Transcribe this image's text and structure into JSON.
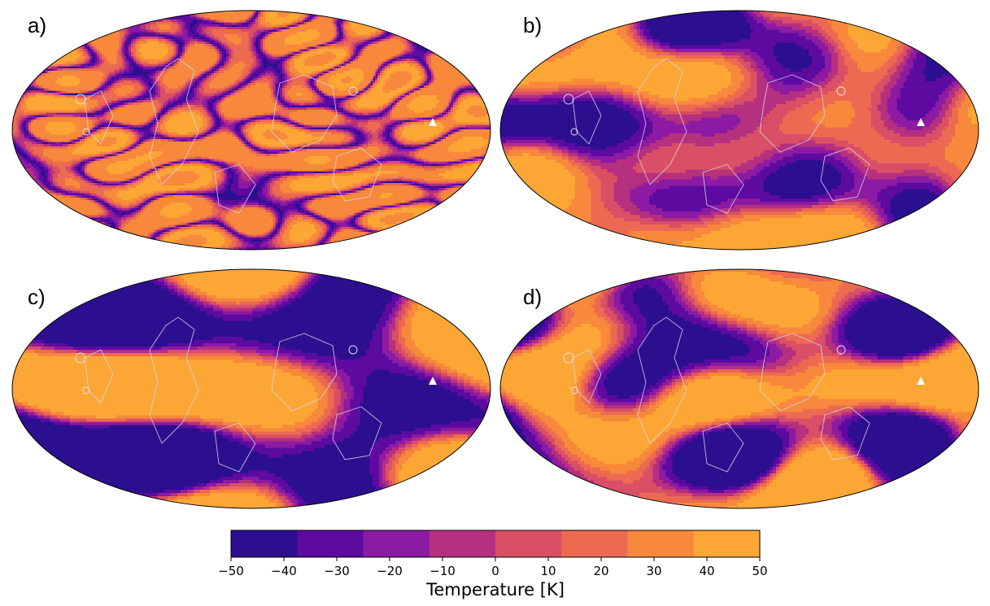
{
  "panels": [
    {
      "id": "a",
      "label": "a)",
      "field_type": "fine",
      "seed": 11
    },
    {
      "id": "b",
      "label": "b)",
      "field_type": "medium",
      "seed": 23
    },
    {
      "id": "c",
      "label": "c)",
      "field_type": "blob",
      "seed": 37
    },
    {
      "id": "d",
      "label": "d)",
      "field_type": "blob-medium",
      "seed": 53
    }
  ],
  "chart_data": {
    "type": "heatmap",
    "projection": "mollweide",
    "panels": [
      "a)",
      "b)",
      "c)",
      "d)"
    ],
    "colorbar": {
      "label": "Temperature [K]",
      "range": [
        -50,
        50
      ],
      "boundaries": [
        -50,
        -37.5,
        -25,
        -12.5,
        0,
        12.5,
        25,
        37.5,
        50
      ],
      "ticks": [
        -50,
        -40,
        -30,
        -20,
        -10,
        0,
        10,
        20,
        30,
        40,
        50
      ],
      "tick_labels": [
        "−50",
        "−40",
        "−30",
        "−20",
        "−10",
        "0",
        "10",
        "20",
        "30",
        "40",
        "50"
      ],
      "colors": [
        "#2b0f8f",
        "#5c0aa0",
        "#8c1aa3",
        "#b5307f",
        "#d94f66",
        "#ed6a52",
        "#f7883c",
        "#fca636",
        "#fcdb3b"
      ]
    },
    "overlays": [
      "coastline contours (light gray)",
      "white triangle marker"
    ]
  }
}
